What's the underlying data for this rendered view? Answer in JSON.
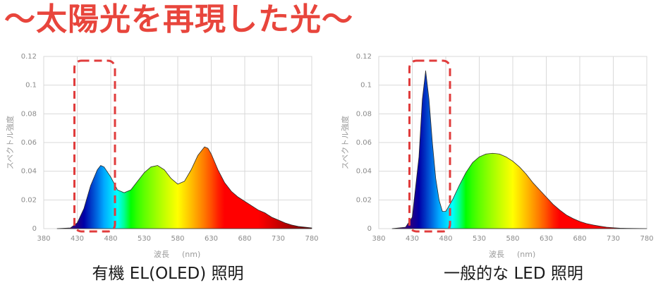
{
  "headline": "～太陽光を再現した光～",
  "chart_data": [
    {
      "type": "area",
      "caption": "有機 EL(OLED) 照明",
      "xlabel": "波長",
      "xlabel_unit": "(nm)",
      "ylabel": "スペクトル強度",
      "xlim": [
        380,
        780
      ],
      "ylim": [
        0,
        0.12
      ],
      "x_ticks": [
        "380",
        "430",
        "480",
        "530",
        "580",
        "630",
        "680",
        "730",
        "780"
      ],
      "y_ticks": [
        "0",
        "0.02",
        "0.04",
        "0.06",
        "0.08",
        "0.1",
        "0.12"
      ],
      "grid": true,
      "highlight_range": [
        430,
        480
      ],
      "fill": "visible-spectrum",
      "x": [
        400,
        420,
        430,
        440,
        450,
        460,
        465,
        470,
        480,
        490,
        500,
        510,
        520,
        530,
        540,
        550,
        560,
        570,
        580,
        590,
        600,
        610,
        620,
        625,
        630,
        640,
        650,
        660,
        670,
        680,
        690,
        700,
        710,
        720,
        730,
        740,
        750,
        760,
        780
      ],
      "values": [
        0,
        0.0005,
        0.004,
        0.014,
        0.03,
        0.041,
        0.044,
        0.043,
        0.036,
        0.027,
        0.025,
        0.027,
        0.033,
        0.039,
        0.043,
        0.044,
        0.041,
        0.035,
        0.031,
        0.033,
        0.041,
        0.051,
        0.057,
        0.056,
        0.052,
        0.041,
        0.032,
        0.026,
        0.022,
        0.019,
        0.016,
        0.013,
        0.011,
        0.008,
        0.006,
        0.004,
        0.0025,
        0.0015,
        0.0005
      ]
    },
    {
      "type": "area",
      "caption": "一般的な LED 照明",
      "xlabel": "波長",
      "xlabel_unit": "(nm)",
      "ylabel": "スペクトル強度",
      "xlim": [
        380,
        780
      ],
      "ylim": [
        0,
        0.12
      ],
      "x_ticks": [
        "380",
        "430",
        "480",
        "530",
        "580",
        "630",
        "680",
        "730",
        "780"
      ],
      "y_ticks": [
        "0",
        "0.02",
        "0.04",
        "0.06",
        "0.08",
        "0.1",
        "0.12"
      ],
      "grid": true,
      "highlight_range": [
        430,
        480
      ],
      "fill": "visible-spectrum",
      "x": [
        400,
        420,
        430,
        440,
        445,
        450,
        455,
        460,
        465,
        470,
        475,
        480,
        490,
        500,
        510,
        520,
        530,
        540,
        550,
        560,
        570,
        580,
        590,
        600,
        610,
        620,
        630,
        640,
        650,
        660,
        670,
        680,
        690,
        700,
        710,
        720,
        730,
        740,
        750,
        760,
        780
      ],
      "values": [
        0,
        0.001,
        0.008,
        0.05,
        0.09,
        0.11,
        0.09,
        0.06,
        0.035,
        0.02,
        0.012,
        0.012,
        0.02,
        0.03,
        0.039,
        0.046,
        0.05,
        0.052,
        0.0525,
        0.052,
        0.05,
        0.047,
        0.043,
        0.038,
        0.032,
        0.027,
        0.022,
        0.017,
        0.013,
        0.0095,
        0.007,
        0.005,
        0.0035,
        0.0025,
        0.0017,
        0.001,
        0.0006,
        0.0003,
        0.0002,
        0.0001,
        0
      ]
    }
  ]
}
